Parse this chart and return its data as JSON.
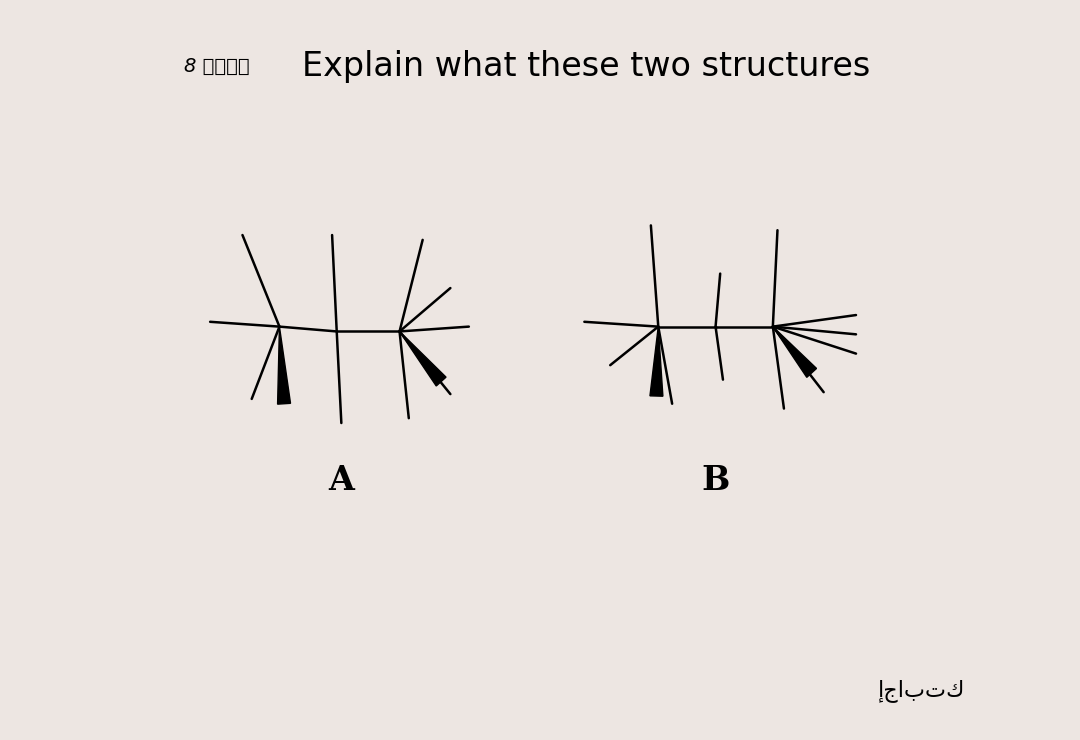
{
  "title": "Explain what these two structures",
  "subtitle_arabic": "8 نقاط",
  "footer_arabic": "إجابتك",
  "label_A": "A",
  "label_B": "B",
  "bg_color": "#ede6e2",
  "card_color": "#ffffff",
  "line_color": "#000000",
  "thin_lw": 1.8,
  "title_fontsize": 24,
  "subtitle_fontsize": 14,
  "label_fontsize": 24,
  "footer_fontsize": 16
}
